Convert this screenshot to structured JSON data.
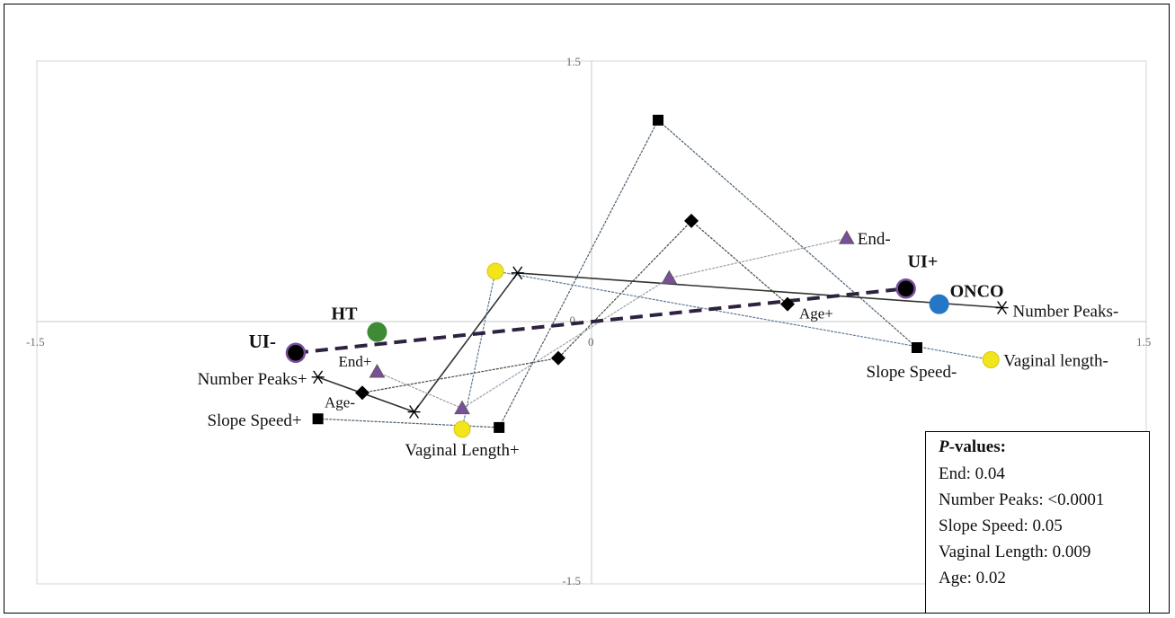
{
  "chart_data": {
    "type": "scatter",
    "xlim": [
      -1.5,
      1.5
    ],
    "ylim": [
      -1.5,
      1.5
    ],
    "x_ticks": [
      "-1.5",
      "0",
      "1.5"
    ],
    "y_ticks": [
      "1.5",
      "0",
      "-1.5"
    ],
    "grid": "frame-only",
    "series": [
      {
        "name": "Slope Speed",
        "marker": "square",
        "color": "#000000",
        "line_color": "#4a5e6e",
        "points": [
          {
            "x": -0.74,
            "y": -0.56,
            "label": "Slope Speed+"
          },
          {
            "x": -0.25,
            "y": -0.61,
            "label": ""
          },
          {
            "x": 0.18,
            "y": 1.16,
            "label": ""
          },
          {
            "x": 0.88,
            "y": -0.15,
            "label": "Slope Speed-"
          }
        ]
      },
      {
        "name": "Age",
        "marker": "diamond",
        "color": "#000000",
        "line_color": "#3e4e3a",
        "points": [
          {
            "x": -0.62,
            "y": -0.41,
            "label": "Age-"
          },
          {
            "x": -0.09,
            "y": -0.21,
            "label": ""
          },
          {
            "x": 0.27,
            "y": 0.58,
            "label": ""
          },
          {
            "x": 0.53,
            "y": 0.1,
            "label": "Age+"
          }
        ]
      },
      {
        "name": "Number Peaks",
        "marker": "star",
        "color": "#000000",
        "line_color": "#333333",
        "points": [
          {
            "x": -0.74,
            "y": -0.32,
            "label": "Number Peaks+"
          },
          {
            "x": -0.48,
            "y": -0.52,
            "label": ""
          },
          {
            "x": -0.2,
            "y": 0.28,
            "label": ""
          },
          {
            "x": 1.11,
            "y": 0.08,
            "label": "Number Peaks-"
          }
        ]
      },
      {
        "name": "End",
        "marker": "triangle",
        "color": "#7a4f9a",
        "line_color": "#9aa0a6",
        "points": [
          {
            "x": -0.58,
            "y": -0.29,
            "label": "End+"
          },
          {
            "x": -0.35,
            "y": -0.5,
            "label": ""
          },
          {
            "x": 0.21,
            "y": 0.25,
            "label": ""
          },
          {
            "x": 0.69,
            "y": 0.48,
            "label": "End-"
          }
        ]
      },
      {
        "name": "Vaginal Length",
        "marker": "circle",
        "color": "#f2e51b",
        "line_color": "#5e7a96",
        "points": [
          {
            "x": -0.35,
            "y": -0.62,
            "label": "Vaginal Length+"
          },
          {
            "x": -0.26,
            "y": 0.29,
            "label": ""
          },
          {
            "x": 1.08,
            "y": -0.22,
            "label": "Vaginal length-"
          }
        ]
      }
    ],
    "groups": [
      {
        "x": -0.8,
        "y": -0.18,
        "label": "UI-",
        "color": "#000000",
        "ring": "#7a4f9a"
      },
      {
        "x": 0.85,
        "y": 0.19,
        "label": "UI+",
        "color": "#000000",
        "ring": "#7a4f9a"
      },
      {
        "x": -0.58,
        "y": -0.06,
        "label": "HT",
        "color": "#3e8a35",
        "ring": ""
      },
      {
        "x": 0.94,
        "y": 0.1,
        "label": "ONCO",
        "color": "#2476c7",
        "ring": ""
      }
    ],
    "trend_line": {
      "style": "dashed",
      "color": "#2e2240",
      "from": "UI-",
      "to": "UI+"
    },
    "pvalues": {
      "title_italic": "P",
      "title_rest": "-values:",
      "rows": [
        "End: 0.04",
        "Number Peaks: <0.0001",
        "Slope Speed: 0.05",
        "Vaginal Length: 0.009",
        "Age: 0.02"
      ]
    }
  }
}
